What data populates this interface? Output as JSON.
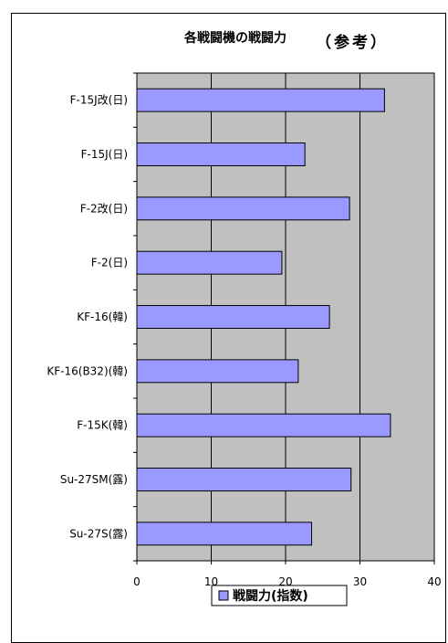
{
  "chart_data": {
    "type": "bar",
    "orientation": "horizontal",
    "title": "各戦闘機の戦闘力",
    "subtitle": "（参考）",
    "categories": [
      "F-15J改(日)",
      "F-15J(日)",
      "F-2改(日)",
      "F-2(日)",
      "KF-16(韓)",
      "KF-16(B32)(韓)",
      "F-15K(韓)",
      "Su-27SM(露)",
      "Su-27S(露)"
    ],
    "series": [
      {
        "name": "戦闘力(指数)",
        "values": [
          33.3,
          22.6,
          28.6,
          19.5,
          25.9,
          21.7,
          34.1,
          28.8,
          23.5
        ]
      }
    ],
    "xlim": [
      0,
      40
    ],
    "xticks": [
      0,
      10,
      20,
      30,
      40
    ],
    "grid": true,
    "legend_position": "bottom",
    "colors": {
      "plot_bg": "#c0c0c0",
      "bar_fill": "#9999ff",
      "bar_stroke": "#000000"
    }
  }
}
